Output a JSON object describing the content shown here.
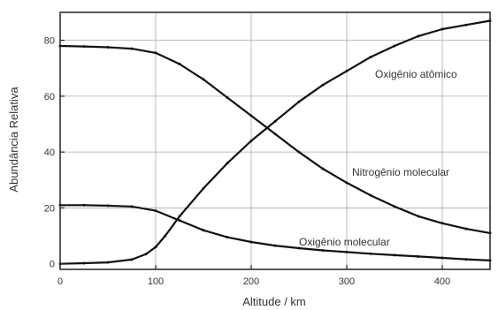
{
  "chart_data": {
    "type": "line",
    "xlabel": "Altitude / km",
    "ylabel": "Abundância Relativa",
    "xlim": [
      0,
      450
    ],
    "ylim": [
      -2,
      90
    ],
    "xticks": [
      0,
      100,
      200,
      300,
      400
    ],
    "yticks": [
      0,
      20,
      40,
      60,
      80
    ],
    "grid": true,
    "series": [
      {
        "name": "Oxigênio atômico",
        "x": [
          0,
          25,
          50,
          75,
          90,
          100,
          110,
          125,
          150,
          175,
          200,
          225,
          250,
          275,
          300,
          325,
          350,
          375,
          400,
          425,
          450
        ],
        "y": [
          0,
          0.2,
          0.5,
          1.5,
          3.5,
          6,
          10,
          17,
          27,
          36,
          44,
          51,
          58,
          64,
          69,
          74,
          78,
          81.5,
          84,
          85.5,
          87
        ]
      },
      {
        "name": "Nitrogênio molecular",
        "x": [
          0,
          25,
          50,
          75,
          100,
          125,
          150,
          175,
          200,
          225,
          250,
          275,
          300,
          325,
          350,
          375,
          400,
          425,
          450
        ],
        "y": [
          78,
          77.8,
          77.5,
          77,
          75.5,
          71.5,
          66,
          59.5,
          53,
          46.5,
          40,
          34,
          29,
          24.5,
          20.5,
          17,
          14.5,
          12.5,
          11
        ]
      },
      {
        "name": "Oxigênio molecular",
        "x": [
          0,
          25,
          50,
          75,
          100,
          125,
          150,
          175,
          200,
          225,
          250,
          275,
          300,
          325,
          350,
          375,
          400,
          425,
          450
        ],
        "y": [
          21,
          21,
          20.8,
          20.5,
          19,
          15.5,
          12,
          9.5,
          7.8,
          6.5,
          5.6,
          4.8,
          4.2,
          3.6,
          3.1,
          2.6,
          2.1,
          1.6,
          1.2
        ]
      }
    ],
    "annotations": [
      "Oxigênio atômico",
      "Nitrogênio molecular",
      "Oxigênio molecular"
    ]
  }
}
